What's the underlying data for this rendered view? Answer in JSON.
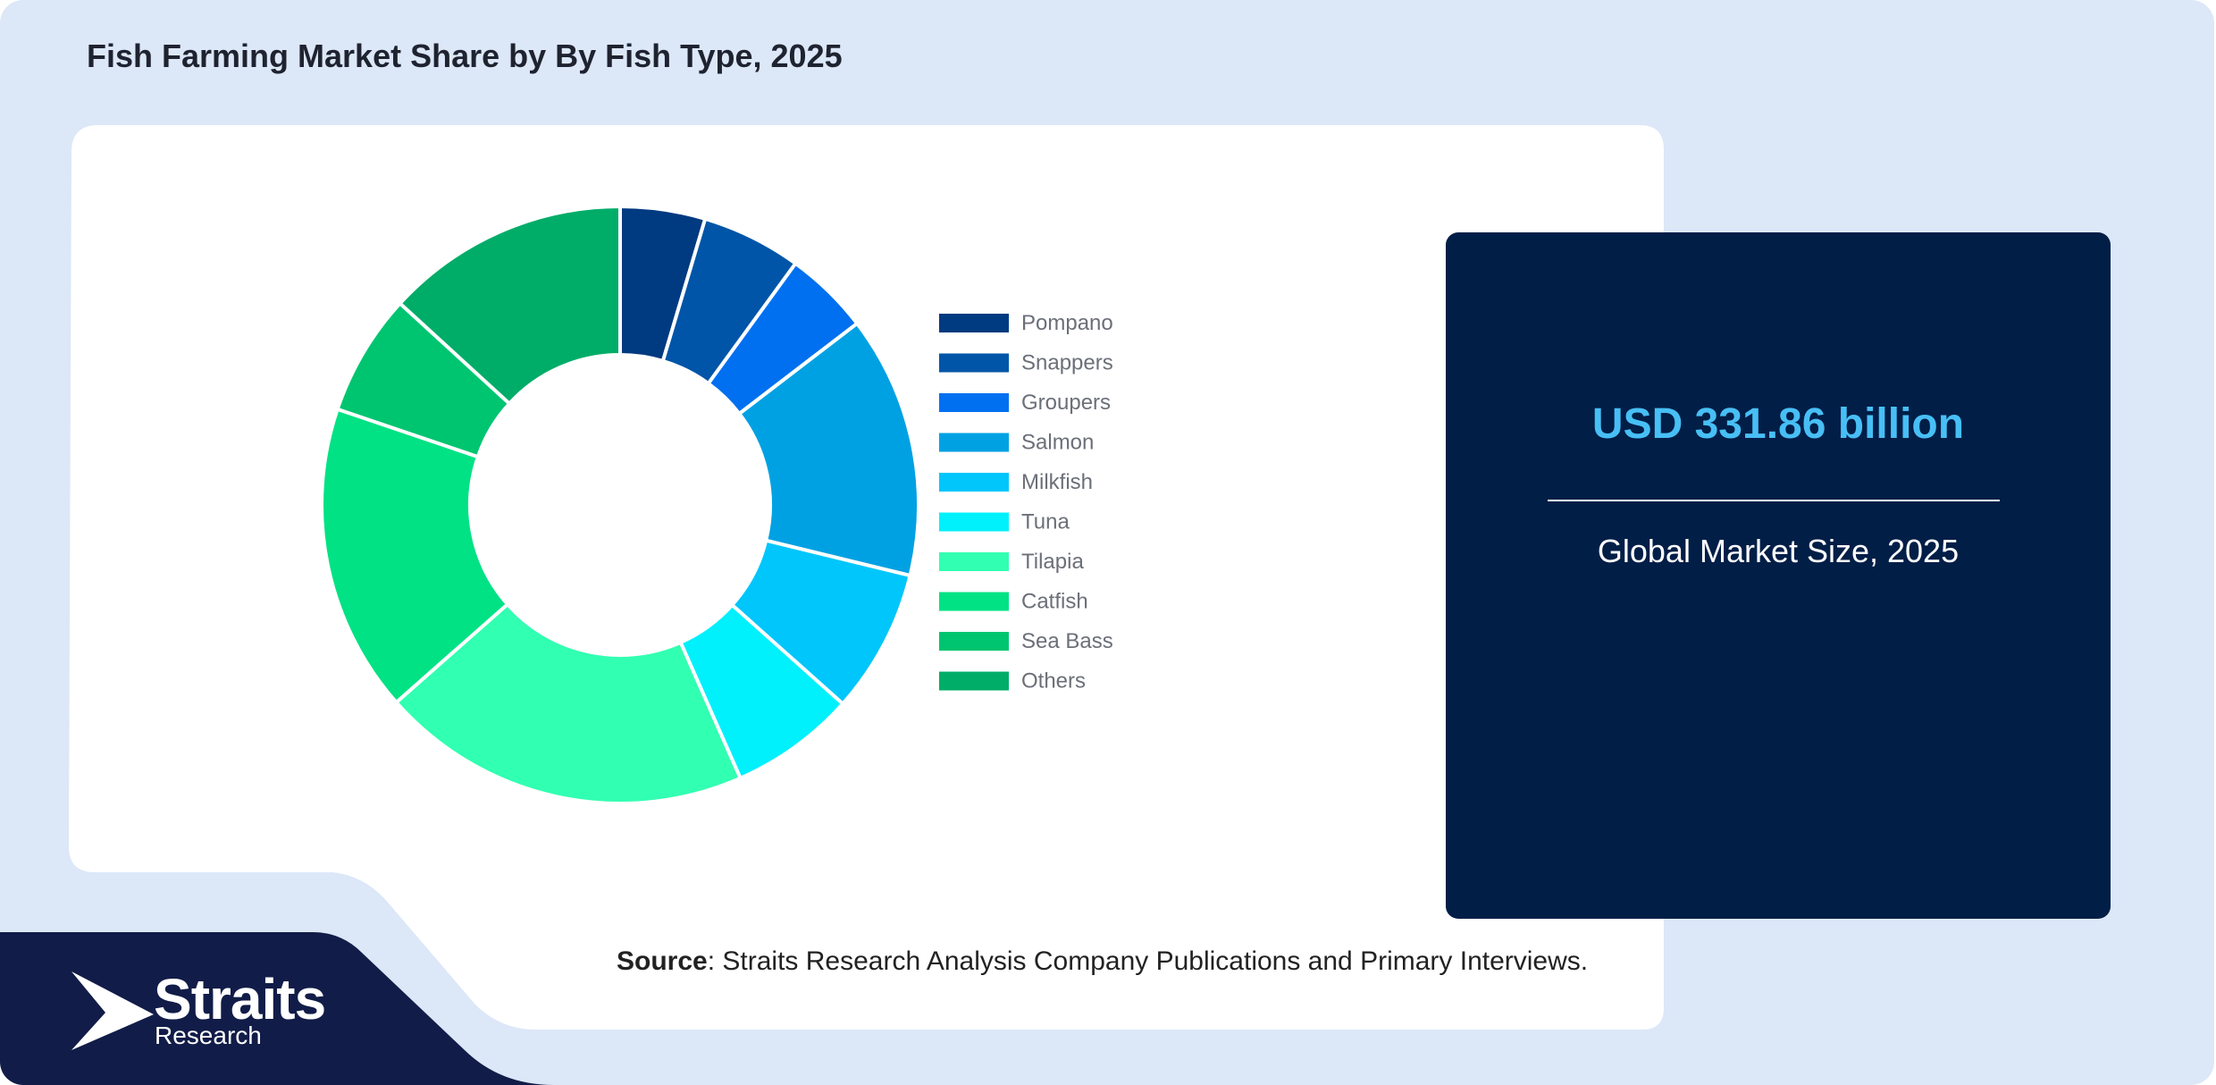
{
  "title": "Fish Farming Market Share by By Fish Type, 2025",
  "chart_data": {
    "type": "pie",
    "variant": "donut",
    "categories": [
      "Pompano",
      "Snappers",
      "Groupers",
      "Salmon",
      "Milkfish",
      "Tuna",
      "Tilapia",
      "Catfish",
      "Sea Bass",
      "Others"
    ],
    "values": [
      4.6,
      5.4,
      4.6,
      14.2,
      7.8,
      6.8,
      20.1,
      16.7,
      6.6,
      13.2
    ],
    "colors": [
      "#003a80",
      "#0055a8",
      "#0070f0",
      "#00a1e3",
      "#00c6fb",
      "#00f0fc",
      "#31ffb1",
      "#00e284",
      "#00c570",
      "#00ad68"
    ],
    "legend_position": "right"
  },
  "stat": {
    "value": "USD 331.86 billion",
    "label": "Global Market Size, 2025"
  },
  "source": {
    "prefix": "Source",
    "text": ": Straits Research Analysis Company Publications and Primary Interviews."
  },
  "logo": {
    "name": "Straits",
    "sub": "Research"
  }
}
